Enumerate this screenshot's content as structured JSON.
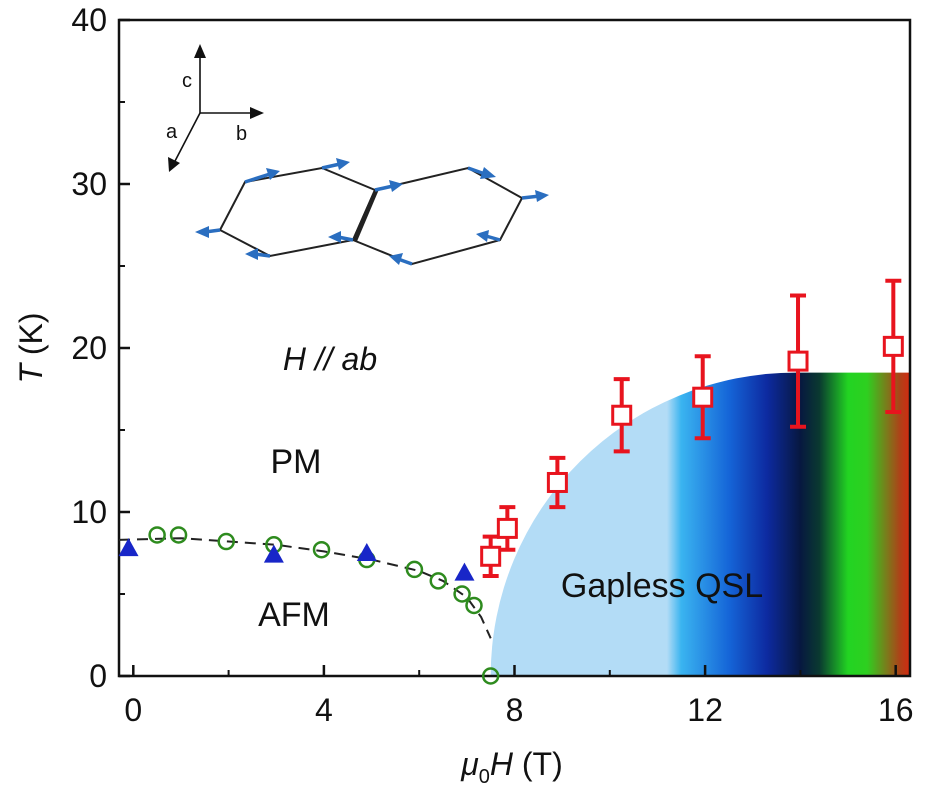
{
  "chart_data": {
    "type": "scatter",
    "title": "",
    "xlabel": {
      "mu": "μ",
      "sub": "0",
      "var": "H",
      "unit": " (T)"
    },
    "ylabel": {
      "var": "T",
      "unit": " (K)"
    },
    "xlim": [
      -0.3,
      16.3
    ],
    "ylim": [
      0,
      40
    ],
    "x_ticks": [
      0,
      4,
      8,
      12,
      16
    ],
    "y_ticks": [
      0,
      10,
      20,
      30,
      40
    ],
    "x_tick_labels": [
      "0",
      "4",
      "8",
      "12",
      "16"
    ],
    "y_tick_labels": [
      "0",
      "10",
      "20",
      "30",
      "40"
    ],
    "grid": false,
    "colors": {
      "red": "#e8141e",
      "green": "#2e8b1e",
      "blue": "#1826c8",
      "spin_arrow": "#2a6ec0",
      "qsl_light": "#b3dcf6"
    },
    "annotations": {
      "field_direction": "H // ab",
      "pm": "PM",
      "afm": "AFM",
      "qsl": "Gapless QSL",
      "axis_a": "a",
      "axis_b": "b",
      "axis_c": "c"
    },
    "series": [
      {
        "name": "red squares (with error bars)",
        "marker": "open-square",
        "color": "#e8141e",
        "points": [
          {
            "x": 7.5,
            "y": 7.3,
            "err": 1.2
          },
          {
            "x": 7.85,
            "y": 9.0,
            "err": 1.3
          },
          {
            "x": 8.9,
            "y": 11.8,
            "err": 1.5
          },
          {
            "x": 10.25,
            "y": 15.9,
            "err": 2.2
          },
          {
            "x": 11.95,
            "y": 17.0,
            "err": 2.5
          },
          {
            "x": 13.95,
            "y": 19.2,
            "err": 4.0
          },
          {
            "x": 15.95,
            "y": 20.1,
            "err": 4.0
          }
        ]
      },
      {
        "name": "green circles",
        "marker": "open-circle",
        "color": "#2e8b1e",
        "points": [
          {
            "x": 0.5,
            "y": 8.6
          },
          {
            "x": 0.95,
            "y": 8.6
          },
          {
            "x": 1.95,
            "y": 8.2
          },
          {
            "x": 2.95,
            "y": 8.0
          },
          {
            "x": 3.95,
            "y": 7.7
          },
          {
            "x": 4.9,
            "y": 7.1
          },
          {
            "x": 5.9,
            "y": 6.5
          },
          {
            "x": 6.4,
            "y": 5.8
          },
          {
            "x": 6.9,
            "y": 5.0
          },
          {
            "x": 7.15,
            "y": 4.3
          },
          {
            "x": 7.5,
            "y": 0.0
          }
        ]
      },
      {
        "name": "blue triangles",
        "marker": "filled-triangle",
        "color": "#1826c8",
        "points": [
          {
            "x": -0.1,
            "y": 7.8
          },
          {
            "x": 2.95,
            "y": 7.4
          },
          {
            "x": 4.9,
            "y": 7.5
          },
          {
            "x": 6.95,
            "y": 6.3
          }
        ]
      }
    ],
    "afm_boundary": {
      "style": "dashed",
      "x": [
        -0.3,
        1.0,
        2.0,
        3.0,
        4.0,
        5.0,
        6.0,
        6.5,
        7.0,
        7.3,
        7.5
      ],
      "y": [
        8.3,
        8.4,
        8.2,
        8.0,
        7.6,
        7.1,
        6.4,
        5.8,
        4.8,
        3.6,
        2.3
      ]
    },
    "qsl_region": {
      "x_start": 7.5,
      "peak_x": 13.9,
      "height": 18.5,
      "x_end": 16.3,
      "gradient_stops": [
        {
          "x": 11.2,
          "color": "#b3dcf6"
        },
        {
          "x": 11.5,
          "color": "#3ab4f0"
        },
        {
          "x": 12.5,
          "color": "#1565d8"
        },
        {
          "x": 13.3,
          "color": "#0d2aa0"
        },
        {
          "x": 14.0,
          "color": "#071840"
        },
        {
          "x": 14.4,
          "color": "#0a3a30"
        },
        {
          "x": 15.0,
          "color": "#22d422"
        },
        {
          "x": 15.4,
          "color": "#2ecf20"
        },
        {
          "x": 16.1,
          "color": "#b04018"
        },
        {
          "x": 16.3,
          "color": "#d42a10"
        }
      ]
    }
  }
}
